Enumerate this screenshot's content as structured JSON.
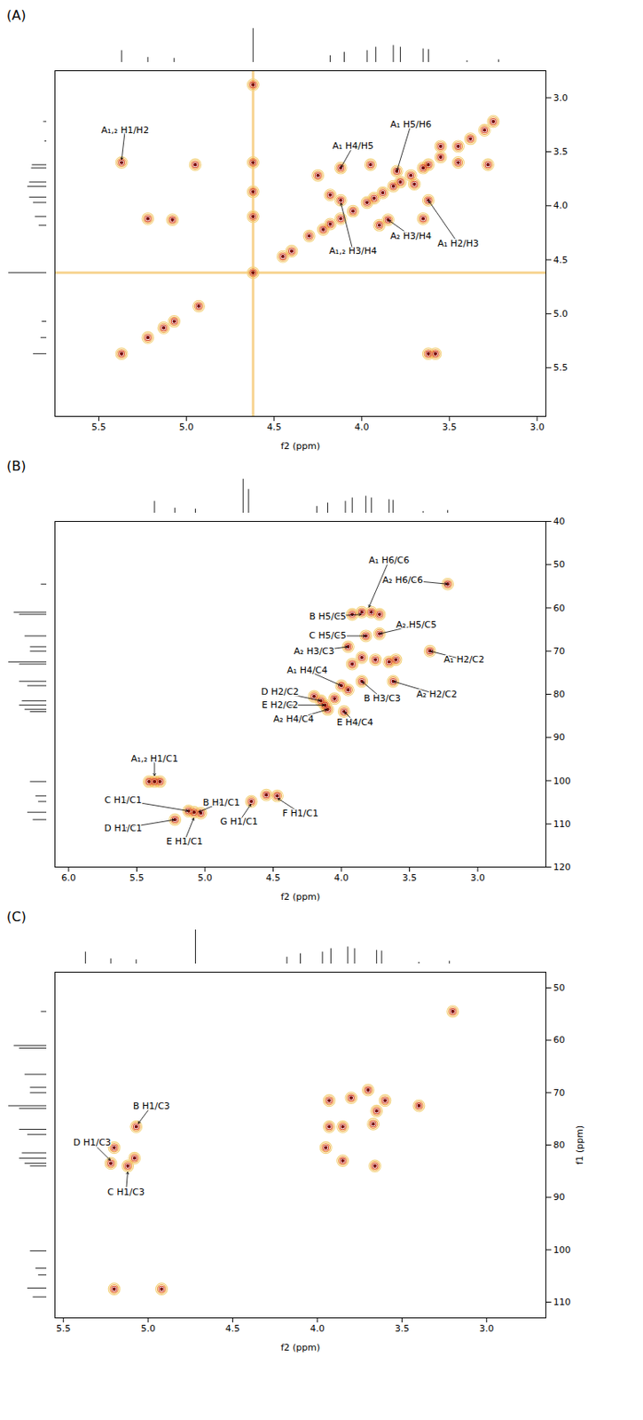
{
  "chart_data": [
    {
      "type": "contour",
      "panel": "(A)",
      "x_label": "f2 (ppm)",
      "y_label": null,
      "xlim": [
        5.75,
        2.95
      ],
      "ylim": [
        5.95,
        2.75
      ],
      "xticks": [
        5.5,
        {
          "value": 5,
          "label": "5.0"
        },
        4.5,
        {
          "value": 4,
          "label": "4.0"
        },
        3.5,
        {
          "value": 3,
          "label": "3.0"
        }
      ],
      "yticks": [
        {
          "value": 3,
          "label": "3.0"
        },
        3.5,
        {
          "value": 4,
          "label": "4.0"
        },
        4.5,
        {
          "value": 5,
          "label": "5.0"
        },
        5.5
      ],
      "grid": false,
      "colors": [
        "#f3d27a",
        "#f0a040",
        "#d9452b",
        "#7a0c0c"
      ],
      "solvent": 4.62,
      "peaks": {
        "x": [
          5.37,
          5.22,
          5.13,
          5.07,
          4.93,
          4.62,
          4.45,
          4.4,
          5.37,
          3.62,
          3.58,
          4.95,
          5.22,
          5.08,
          4.62,
          4.62,
          4.62,
          4.62,
          4.3,
          4.22,
          4.18,
          4.12,
          4.05,
          3.97,
          3.93,
          3.88,
          3.82,
          3.78,
          3.72,
          3.65,
          3.62,
          3.55,
          3.45,
          3.38,
          3.3,
          3.25,
          4.12,
          4.12,
          3.8,
          3.62,
          3.85,
          3.95,
          4.18,
          3.9,
          3.7,
          3.65,
          3.55,
          3.45,
          3.28,
          4.25
        ],
        "y": [
          5.37,
          5.22,
          5.13,
          5.07,
          4.93,
          4.62,
          4.47,
          4.42,
          3.6,
          5.37,
          5.37,
          3.62,
          4.12,
          4.13,
          2.88,
          3.6,
          3.87,
          4.1,
          4.28,
          4.22,
          4.17,
          4.12,
          4.05,
          3.97,
          3.93,
          3.88,
          3.82,
          3.78,
          3.72,
          3.65,
          3.62,
          3.55,
          3.45,
          3.38,
          3.3,
          3.22,
          3.65,
          3.95,
          3.68,
          3.95,
          4.13,
          3.62,
          3.9,
          4.18,
          3.8,
          4.12,
          3.45,
          3.6,
          3.62,
          3.72
        ]
      },
      "annotations": [
        {
          "text": "A₁,₂ H1/H2",
          "x": 5.37,
          "y": 3.58,
          "tx": 5.35,
          "ty": 3.3
        },
        {
          "text": "A₁ H4/H5",
          "x": 4.12,
          "y": 3.65,
          "tx": 4.05,
          "ty": 3.45
        },
        {
          "text": "A₁ H5/H6",
          "x": 3.8,
          "y": 3.68,
          "tx": 3.72,
          "ty": 3.25
        },
        {
          "text": "A₁ H2/H3",
          "x": 3.62,
          "y": 3.95,
          "tx": 3.45,
          "ty": 4.35
        },
        {
          "text": "A₁,₂ H3/H4",
          "x": 4.12,
          "y": 3.97,
          "tx": 4.05,
          "ty": 4.42
        },
        {
          "text": "A₂ H3/H4",
          "x": 3.85,
          "y": 4.13,
          "tx": 3.72,
          "ty": 4.28
        }
      ],
      "projection_f2": {
        "ppm": [
          5.37,
          5.22,
          5.07,
          4.62,
          4.18,
          4.1,
          3.97,
          3.92,
          3.82,
          3.78,
          3.65,
          3.62,
          3.4,
          3.22
        ],
        "intensity": [
          0.35,
          0.15,
          0.12,
          1.0,
          0.2,
          0.3,
          0.35,
          0.45,
          0.5,
          0.45,
          0.4,
          0.38,
          0.05,
          0.08
        ]
      },
      "projection_f1": {
        "ppm": [
          5.37,
          5.22,
          5.07,
          4.62,
          4.18,
          4.1,
          3.97,
          3.92,
          3.82,
          3.78,
          3.65,
          3.62,
          3.4,
          3.22
        ],
        "intensity": [
          0.35,
          0.15,
          0.12,
          1.0,
          0.2,
          0.3,
          0.35,
          0.45,
          0.5,
          0.45,
          0.4,
          0.38,
          0.05,
          0.08
        ]
      }
    },
    {
      "type": "contour",
      "panel": "(B)",
      "x_label": "f2 (ppm)",
      "y_label": null,
      "xlim": [
        6.1,
        2.5
      ],
      "ylim": [
        120,
        40
      ],
      "xticks": [
        {
          "value": 6,
          "label": "6.0"
        },
        5.5,
        {
          "value": 5,
          "label": "5.0"
        },
        4.5,
        {
          "value": 4,
          "label": "4.0"
        },
        3.5,
        {
          "value": 3,
          "label": "3.0"
        }
      ],
      "yticks": [
        40,
        50,
        60,
        70,
        80,
        90,
        100,
        110,
        120
      ],
      "grid": false,
      "colors": [
        "#f3d27a",
        "#f0a040",
        "#d9452b",
        "#7a0c0c"
      ],
      "peaks": {
        "x": [
          5.37,
          5.33,
          5.41,
          5.22,
          5.08,
          5.03,
          5.12,
          4.66,
          4.55,
          4.47,
          3.85,
          3.78,
          3.72,
          3.92,
          3.22,
          3.82,
          3.72,
          3.95,
          3.35,
          3.65,
          3.6,
          3.75,
          3.85,
          3.92,
          3.62,
          3.85,
          4.0,
          3.95,
          4.15,
          4.12,
          4.1,
          3.98,
          4.05,
          4.2
        ],
        "y": [
          100.2,
          100.2,
          100.2,
          109,
          107.3,
          107.5,
          107,
          104.8,
          103.3,
          103.5,
          61,
          61,
          61.5,
          61.5,
          54.5,
          66.5,
          66,
          69,
          70,
          72.5,
          72,
          72,
          71.5,
          73,
          77,
          77,
          78,
          79,
          81.5,
          82.5,
          83.5,
          84,
          81,
          80.5
        ]
      },
      "annotations": [
        {
          "text": "A₁ H6/C6",
          "x": 3.8,
          "y": 60,
          "tx": 3.65,
          "ty": 49
        },
        {
          "text": "A₂ H6/C6",
          "x": 3.22,
          "y": 54.5,
          "tx": 3.55,
          "ty": 53.5
        },
        {
          "text": "B H5/C5",
          "x": 3.85,
          "y": 61.5,
          "tx": 4.1,
          "ty": 62
        },
        {
          "text": "C H5/C5",
          "x": 3.82,
          "y": 66.5,
          "tx": 4.1,
          "ty": 66.5
        },
        {
          "text": "A₂ H5/C5",
          "x": 3.72,
          "y": 66,
          "tx": 3.45,
          "ty": 64
        },
        {
          "text": "A₂ H3/C3",
          "x": 3.95,
          "y": 69,
          "tx": 4.2,
          "ty": 70
        },
        {
          "text": "A₁ H2/C2",
          "x": 3.35,
          "y": 70,
          "tx": 3.1,
          "ty": 72
        },
        {
          "text": "A₁ H4/C4",
          "x": 4.0,
          "y": 78,
          "tx": 4.25,
          "ty": 74.5
        },
        {
          "text": "D H2/C2",
          "x": 4.15,
          "y": 81.5,
          "tx": 4.45,
          "ty": 79.5
        },
        {
          "text": "E H2/C2",
          "x": 4.12,
          "y": 82.5,
          "tx": 4.45,
          "ty": 82.5
        },
        {
          "text": "A₂ H4/C4",
          "x": 4.1,
          "y": 83.5,
          "tx": 4.35,
          "ty": 85.8
        },
        {
          "text": "E H4/C4",
          "x": 3.98,
          "y": 84,
          "tx": 3.9,
          "ty": 86.5
        },
        {
          "text": "B H3/C3",
          "x": 3.85,
          "y": 77,
          "tx": 3.7,
          "ty": 81
        },
        {
          "text": "A₂ H2/C2",
          "x": 3.62,
          "y": 77,
          "tx": 3.3,
          "ty": 80
        },
        {
          "text": "A₁,₂ H1/C1",
          "x": 5.37,
          "y": 99,
          "tx": 5.37,
          "ty": 95
        },
        {
          "text": "C H1/C1",
          "x": 5.12,
          "y": 107,
          "tx": 5.6,
          "ty": 104.5
        },
        {
          "text": "B H1/C1",
          "x": 5.05,
          "y": 107.3,
          "tx": 4.88,
          "ty": 105
        },
        {
          "text": "D H1/C1",
          "x": 5.22,
          "y": 109,
          "tx": 5.6,
          "ty": 111
        },
        {
          "text": "E H1/C1",
          "x": 5.08,
          "y": 108.5,
          "tx": 5.15,
          "ty": 114
        },
        {
          "text": "G H1/C1",
          "x": 4.66,
          "y": 105.3,
          "tx": 4.75,
          "ty": 109.5
        },
        {
          "text": "F H1/C1",
          "x": 4.47,
          "y": 104,
          "tx": 4.3,
          "ty": 107.5
        }
      ],
      "projection_f2": {
        "ppm": [
          5.37,
          5.22,
          5.07,
          4.72,
          4.68,
          4.18,
          4.1,
          3.97,
          3.92,
          3.82,
          3.78,
          3.65,
          3.62,
          3.4,
          3.22
        ],
        "intensity": [
          0.35,
          0.15,
          0.12,
          1.0,
          0.7,
          0.2,
          0.3,
          0.35,
          0.45,
          0.5,
          0.45,
          0.4,
          0.38,
          0.05,
          0.08
        ]
      },
      "projection_f1": {
        "ppm": [
          54.5,
          61,
          61.5,
          66.5,
          69,
          70,
          72.5,
          73,
          77,
          78,
          81.5,
          82.5,
          83.5,
          84,
          100.2,
          103.5,
          104.8,
          107.3,
          109
        ],
        "intensity": [
          0.1,
          0.6,
          0.5,
          0.4,
          0.3,
          0.3,
          0.7,
          0.5,
          0.5,
          0.35,
          0.45,
          0.5,
          0.4,
          0.3,
          0.3,
          0.2,
          0.15,
          0.35,
          0.25
        ]
      }
    },
    {
      "type": "contour",
      "panel": "(C)",
      "x_label": "f2 (ppm)",
      "y_label": "f1 (ppm)",
      "xlim": [
        5.55,
        2.65
      ],
      "ylim": [
        113,
        47
      ],
      "xticks": [
        5.5,
        {
          "value": 5,
          "label": "5.0"
        },
        4.5,
        {
          "value": 4,
          "label": "4.0"
        },
        3.5,
        {
          "value": 3,
          "label": "3.0"
        }
      ],
      "yticks": [
        50,
        60,
        70,
        80,
        90,
        100,
        110
      ],
      "grid": false,
      "colors": [
        "#f3d27a",
        "#f0a040",
        "#d9452b",
        "#7a0c0c"
      ],
      "peaks": {
        "x": [
          3.2,
          5.2,
          4.92,
          5.22,
          5.08,
          5.12,
          5.07,
          5.2,
          3.93,
          3.95,
          3.93,
          3.85,
          3.7,
          3.66,
          3.65,
          3.6,
          3.4,
          3.8,
          3.85,
          3.67
        ],
        "y": [
          54.5,
          107.5,
          107.5,
          83.5,
          82.5,
          84,
          76.5,
          80.5,
          71.5,
          80.5,
          76.5,
          83,
          69.5,
          84,
          73.5,
          71.5,
          72.5,
          71,
          76.5,
          76
        ]
      },
      "annotations": [
        {
          "text": "B H1/C3",
          "x": 5.06,
          "y": 76,
          "tx": 4.98,
          "ty": 72.5
        },
        {
          "text": "D H1/C3",
          "x": 5.22,
          "y": 83,
          "tx": 5.33,
          "ty": 79.5
        },
        {
          "text": "C H1/C3",
          "x": 5.12,
          "y": 85,
          "tx": 5.13,
          "ty": 89
        }
      ],
      "projection_f2": {
        "ppm": [
          5.37,
          5.22,
          5.07,
          4.72,
          4.18,
          4.1,
          3.97,
          3.92,
          3.82,
          3.78,
          3.65,
          3.62,
          3.4,
          3.22
        ],
        "intensity": [
          0.35,
          0.15,
          0.12,
          1.0,
          0.2,
          0.3,
          0.35,
          0.45,
          0.5,
          0.45,
          0.4,
          0.38,
          0.05,
          0.08
        ]
      },
      "projection_f1": {
        "ppm": [
          54.5,
          61,
          61.5,
          66.5,
          69,
          70,
          72.5,
          73,
          77,
          78,
          81.5,
          82.5,
          83.5,
          84,
          100.2,
          103.5,
          104.8,
          107.3,
          109
        ],
        "intensity": [
          0.1,
          0.6,
          0.5,
          0.4,
          0.3,
          0.3,
          0.7,
          0.5,
          0.5,
          0.35,
          0.45,
          0.5,
          0.4,
          0.3,
          0.3,
          0.2,
          0.15,
          0.35,
          0.25
        ]
      }
    }
  ]
}
